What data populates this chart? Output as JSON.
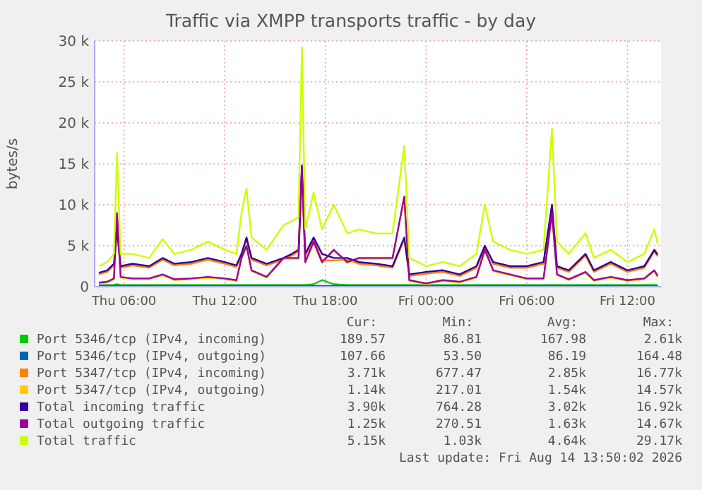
{
  "chart_data": {
    "type": "line",
    "title": "Traffic via XMPP transports traffic - by day",
    "ylabel": "bytes/s",
    "x": [
      "2026-08-13T04:30",
      "2026-08-13T05:00",
      "2026-08-13T05:24",
      "2026-08-13T05:35",
      "2026-08-13T05:48",
      "2026-08-13T06:30",
      "2026-08-13T07:30",
      "2026-08-13T08:18",
      "2026-08-13T09:00",
      "2026-08-13T10:00",
      "2026-08-13T11:00",
      "2026-08-13T12:00",
      "2026-08-13T12:42",
      "2026-08-13T13:00",
      "2026-08-13T13:18",
      "2026-08-13T13:36",
      "2026-08-13T14:30",
      "2026-08-13T15:30",
      "2026-08-13T16:00",
      "2026-08-13T16:24",
      "2026-08-13T16:36",
      "2026-08-13T16:48",
      "2026-08-13T17:18",
      "2026-08-13T17:48",
      "2026-08-13T18:30",
      "2026-08-13T19:18",
      "2026-08-13T20:00",
      "2026-08-13T21:00",
      "2026-08-13T22:00",
      "2026-08-13T22:42",
      "2026-08-13T23:00",
      "2026-08-14T00:00",
      "2026-08-14T01:00",
      "2026-08-14T02:00",
      "2026-08-14T03:00",
      "2026-08-14T03:30",
      "2026-08-14T04:00",
      "2026-08-14T05:00",
      "2026-08-14T06:00",
      "2026-08-14T07:00",
      "2026-08-14T07:30",
      "2026-08-14T07:48",
      "2026-08-14T08:30",
      "2026-08-14T09:30",
      "2026-08-14T10:00",
      "2026-08-14T11:00",
      "2026-08-14T12:00",
      "2026-08-14T13:00",
      "2026-08-14T13:36",
      "2026-08-14T13:48"
    ],
    "xlim": [
      "2026-08-13T04:15",
      "2026-08-14T14:00"
    ],
    "xticks": [
      {
        "value": "2026-08-13T06:00",
        "label": "Thu 06:00"
      },
      {
        "value": "2026-08-13T12:00",
        "label": "Thu 12:00"
      },
      {
        "value": "2026-08-13T18:00",
        "label": "Thu 18:00"
      },
      {
        "value": "2026-08-14T00:00",
        "label": "Fri 00:00"
      },
      {
        "value": "2026-08-14T06:00",
        "label": "Fri 06:00"
      },
      {
        "value": "2026-08-14T12:00",
        "label": "Fri 12:00"
      }
    ],
    "ylim": [
      0,
      30000
    ],
    "yticks": [
      0,
      {
        "value": 5000,
        "label": "5 k"
      },
      {
        "value": 10000,
        "label": "10 k"
      },
      {
        "value": 15000,
        "label": "15 k"
      },
      {
        "value": 20000,
        "label": "20 k"
      },
      {
        "value": 25000,
        "label": "25 k"
      },
      {
        "value": 30000,
        "label": "30 k"
      }
    ],
    "grid": true,
    "legend": "bottom",
    "line_style": "solid",
    "series": [
      {
        "name": "Port 5346/tcp (IPv4, incoming)",
        "color": "#00cc00",
        "values": [
          200,
          200,
          200,
          300,
          200,
          200,
          200,
          200,
          200,
          200,
          200,
          200,
          200,
          200,
          200,
          200,
          200,
          200,
          200,
          200,
          200,
          200,
          300,
          800,
          300,
          200,
          200,
          200,
          200,
          200,
          200,
          200,
          200,
          200,
          200,
          200,
          200,
          200,
          200,
          200,
          200,
          200,
          200,
          200,
          200,
          200,
          200,
          200,
          200,
          200
        ]
      },
      {
        "name": "Port 5346/tcp (IPv4, outgoing)",
        "color": "#0066b3",
        "values": [
          100,
          100,
          100,
          100,
          100,
          100,
          100,
          100,
          100,
          100,
          100,
          100,
          100,
          100,
          100,
          100,
          100,
          100,
          100,
          100,
          100,
          100,
          100,
          100,
          100,
          100,
          100,
          100,
          100,
          100,
          100,
          100,
          100,
          100,
          100,
          100,
          100,
          100,
          100,
          100,
          100,
          100,
          100,
          100,
          100,
          100,
          100,
          100,
          100,
          100
        ]
      },
      {
        "name": "Port 5347/tcp (IPv4, incoming)",
        "color": "#ff8000",
        "values": [
          1500,
          1800,
          2600,
          6800,
          2300,
          2600,
          2300,
          3300,
          2600,
          2800,
          3300,
          2800,
          2400,
          3800,
          5800,
          3300,
          2600,
          3300,
          3800,
          4300,
          14500,
          3800,
          5700,
          3200,
          3200,
          3300,
          2800,
          2600,
          2300,
          5800,
          1300,
          1600,
          1800,
          1300,
          2300,
          4800,
          2800,
          2300,
          2300,
          2800,
          9800,
          2300,
          1800,
          3800,
          1800,
          2800,
          1800,
          2300,
          4300,
          3700
        ]
      },
      {
        "name": "Port 5347/tcp (IPv4, outgoing)",
        "color": "#ffcc00",
        "values": [
          400,
          500,
          900,
          8900,
          1100,
          900,
          900,
          1400,
          800,
          900,
          1100,
          900,
          700,
          3400,
          4900,
          1900,
          1100,
          3400,
          3400,
          3400,
          14300,
          2900,
          5400,
          2900,
          4400,
          2900,
          3400,
          3400,
          3400,
          10900,
          700,
          300,
          700,
          500,
          1100,
          4400,
          1900,
          1400,
          900,
          900,
          8900,
          1400,
          800,
          1700,
          700,
          1100,
          700,
          900,
          1900,
          1100
        ]
      },
      {
        "name": "Total incoming traffic",
        "color": "#330099",
        "values": [
          1700,
          2000,
          2800,
          7000,
          2500,
          2800,
          2500,
          3500,
          2800,
          3000,
          3500,
          3000,
          2600,
          4000,
          6000,
          3500,
          2800,
          3500,
          4000,
          4500,
          14800,
          4000,
          6000,
          4000,
          3500,
          3500,
          3000,
          2800,
          2500,
          6000,
          1500,
          1800,
          2000,
          1500,
          2500,
          5000,
          3000,
          2500,
          2500,
          3000,
          10000,
          2500,
          2000,
          4000,
          2000,
          3000,
          2000,
          2500,
          4500,
          3900
        ]
      },
      {
        "name": "Total outgoing traffic",
        "color": "#990099",
        "values": [
          500,
          600,
          1000,
          9000,
          1200,
          1000,
          1000,
          1500,
          900,
          1000,
          1200,
          1000,
          800,
          3500,
          5000,
          2000,
          1200,
          3500,
          3500,
          3500,
          14400,
          3000,
          5500,
          3000,
          4500,
          3000,
          3500,
          3500,
          3500,
          11000,
          800,
          400,
          800,
          600,
          1200,
          4500,
          2000,
          1500,
          1000,
          1000,
          9000,
          1500,
          900,
          1800,
          800,
          1200,
          800,
          1000,
          2000,
          1300
        ]
      },
      {
        "name": "Total traffic",
        "color": "#ccff00",
        "values": [
          2500,
          3000,
          4000,
          16300,
          4000,
          4000,
          3500,
          5800,
          4000,
          4500,
          5500,
          4500,
          4000,
          9000,
          12000,
          6000,
          4500,
          7500,
          8000,
          8500,
          29200,
          7000,
          11500,
          7000,
          10000,
          6500,
          7000,
          6500,
          6500,
          17200,
          3500,
          2500,
          3000,
          2500,
          4000,
          10000,
          5500,
          4500,
          4000,
          4500,
          19300,
          5500,
          4000,
          6500,
          3500,
          4500,
          3000,
          4000,
          7000,
          5200
        ]
      }
    ],
    "annotations": [
      "Cur:",
      "Min:",
      "Avg:",
      "Max:",
      "189.57",
      "86.81",
      "167.98",
      "2.61k",
      "107.66",
      "53.50",
      "86.19",
      "164.48",
      "3.71k",
      "677.47",
      "2.85k",
      "16.77k",
      "1.14k",
      "217.01",
      "1.54k",
      "14.57k",
      "3.90k",
      "764.28",
      "3.02k",
      "16.92k",
      "1.25k",
      "270.51",
      "1.63k",
      "14.67k",
      "5.15k",
      "1.03k",
      "4.64k",
      "29.17k",
      "Last update: Fri Aug 14 13:50:02 2026"
    ]
  }
}
